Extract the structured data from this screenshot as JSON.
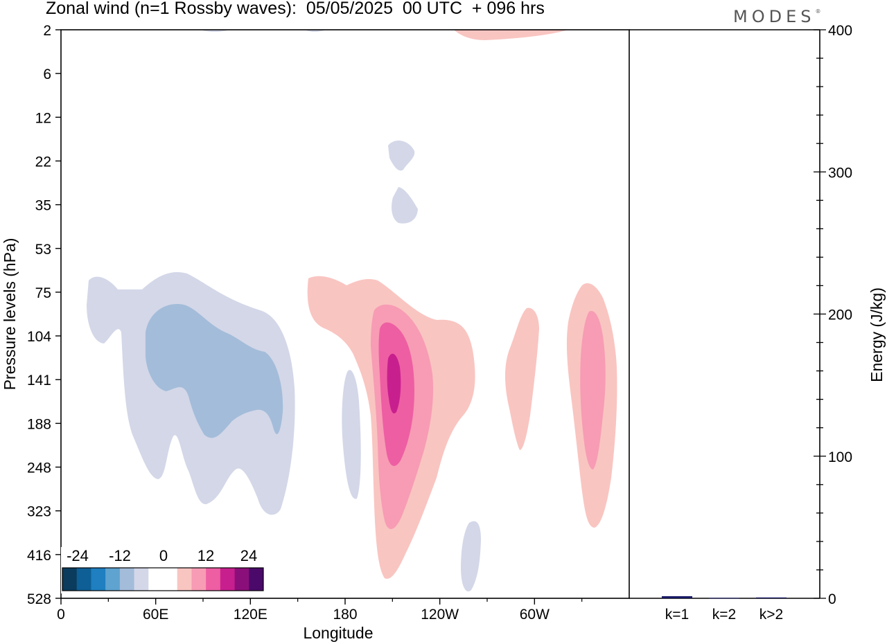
{
  "header": {
    "title": "Zonal wind (n=1 Rossby waves):  05/05/2025  00 UTC  + 096 hrs",
    "brand": "MODES",
    "brand_mark": "®"
  },
  "chart_data": [
    {
      "type": "heatmap",
      "title": "Zonal wind (n=1 Rossby waves):  05/05/2025  00 UTC  + 096 hrs",
      "xlabel": "Longitude",
      "ylabel": "Pressure levels (hPa)",
      "x_range_deg_east": [
        0,
        360
      ],
      "x_ticks": [
        {
          "lon": 0,
          "label": "0"
        },
        {
          "lon": 60,
          "label": "60E"
        },
        {
          "lon": 120,
          "label": "120E"
        },
        {
          "lon": 180,
          "label": "180"
        },
        {
          "lon": 240,
          "label": "120W"
        },
        {
          "lon": 300,
          "label": "60W"
        }
      ],
      "y_levels": [
        "2",
        "6",
        "12",
        "22",
        "35",
        "53",
        "75",
        "104",
        "141",
        "188",
        "248",
        "323",
        "416",
        "528"
      ],
      "colorbar": {
        "tick_labels": [
          "-24",
          "-12",
          "0",
          "12",
          "24"
        ],
        "colors": [
          "#0b3c5d",
          "#0e5f96",
          "#1f7fc0",
          "#5fa3d0",
          "#a3bcd9",
          "#d3d7e8",
          "#ffffff",
          "#ffffff",
          "#f9c5c1",
          "#f79cb4",
          "#ee5ea3",
          "#c81f8e",
          "#8b0f7a",
          "#4b0a6a"
        ]
      },
      "features": [
        {
          "sign": "negative",
          "level": 1,
          "lon_range": [
            15,
            147
          ],
          "p_range_hPa": [
            75,
            323
          ]
        },
        {
          "sign": "negative",
          "level": 2,
          "lon_range": [
            52,
            137
          ],
          "p_range_hPa": [
            95,
            188
          ]
        },
        {
          "sign": "positive",
          "level": 1,
          "lon_range": [
            153,
            258
          ],
          "p_range_hPa": [
            75,
            416
          ]
        },
        {
          "sign": "positive",
          "level": 2,
          "lon_range": [
            197,
            237
          ],
          "p_range_hPa": [
            95,
            416
          ]
        },
        {
          "sign": "positive",
          "level": 3,
          "lon_range": [
            203,
            225
          ],
          "p_range_hPa": [
            104,
            248
          ]
        },
        {
          "sign": "positive",
          "level": 4,
          "lon_range": [
            209,
            215
          ],
          "p_range_hPa": [
            130,
            170
          ]
        },
        {
          "sign": "positive",
          "level": 1,
          "lon_range": [
            275,
            292
          ],
          "p_range_hPa": [
            90,
            248
          ]
        },
        {
          "sign": "positive",
          "level": 1,
          "lon_range": [
            322,
            345
          ],
          "p_range_hPa": [
            75,
            323
          ]
        },
        {
          "sign": "positive",
          "level": 2,
          "lon_range": [
            328,
            342
          ],
          "p_range_hPa": [
            104,
            248
          ]
        },
        {
          "sign": "negative",
          "level": 1,
          "lon_range": [
            183,
            192
          ],
          "p_range_hPa": [
            141,
            323
          ]
        },
        {
          "sign": "negative",
          "level": 1,
          "lon_range": [
            207,
            218
          ],
          "p_range_hPa": [
            16,
            24
          ]
        },
        {
          "sign": "negative",
          "level": 1,
          "lon_range": [
            207,
            220
          ],
          "p_range_hPa": [
            33,
            40
          ]
        },
        {
          "sign": "negative",
          "level": 1,
          "lon_range": [
            250,
            260
          ],
          "p_range_hPa": [
            370,
            528
          ]
        },
        {
          "sign": "positive",
          "level": 1,
          "lon_range": [
            237,
            303
          ],
          "p_range_hPa": [
            2,
            2.5
          ]
        }
      ]
    },
    {
      "type": "bar",
      "ylabel": "Energy (J/kg)",
      "ylim": [
        0,
        400
      ],
      "y_ticks": [
        0,
        100,
        200,
        300,
        400
      ],
      "categories": [
        "k=1",
        "k=2",
        "k>2"
      ],
      "values": [
        1.5,
        0.3,
        0.6
      ]
    }
  ]
}
